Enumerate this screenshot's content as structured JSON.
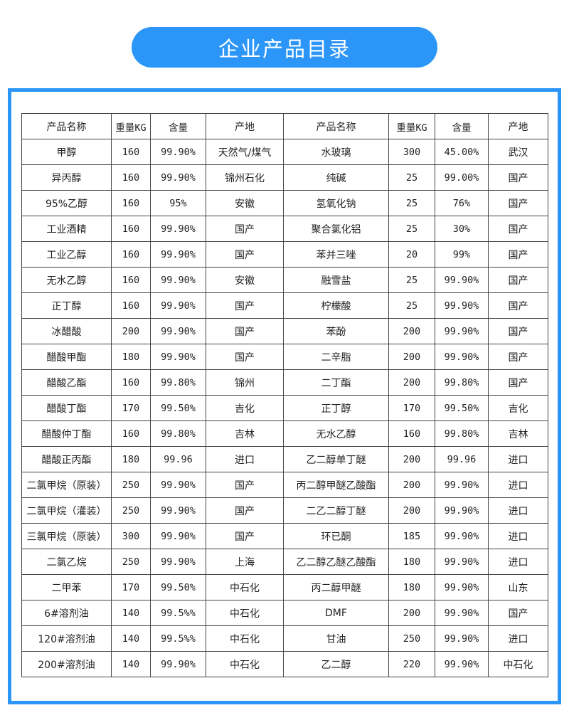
{
  "title": "企业产品目录",
  "colors": {
    "accent": "#2b96f7"
  },
  "table": {
    "headers": [
      "产品名称",
      "重量KG",
      "含量",
      "产地",
      "产品名称",
      "重量KG",
      "含量",
      "产地"
    ],
    "rows": [
      [
        "甲醇",
        "160",
        "99.90%",
        "天然气/煤气",
        "水玻璃",
        "300",
        "45.00%",
        "武汉"
      ],
      [
        "异丙醇",
        "160",
        "99.90%",
        "锦州石化",
        "纯碱",
        "25",
        "99.00%",
        "国产"
      ],
      [
        "95%乙醇",
        "160",
        "95%",
        "安徽",
        "氢氧化钠",
        "25",
        "76%",
        "国产"
      ],
      [
        "工业酒精",
        "160",
        "99.90%",
        "国产",
        "聚合氯化铝",
        "25",
        "30%",
        "国产"
      ],
      [
        "工业乙醇",
        "160",
        "99.90%",
        "国产",
        "苯并三唑",
        "20",
        "99%",
        "国产"
      ],
      [
        "无水乙醇",
        "160",
        "99.90%",
        "安徽",
        "融雪盐",
        "25",
        "99.90%",
        "国产"
      ],
      [
        "正丁醇",
        "160",
        "99.90%",
        "国产",
        "柠檬酸",
        "25",
        "99.90%",
        "国产"
      ],
      [
        "冰醋酸",
        "200",
        "99.90%",
        "国产",
        "苯酚",
        "200",
        "99.90%",
        "国产"
      ],
      [
        "醋酸甲酯",
        "180",
        "99.90%",
        "国产",
        "二辛脂",
        "200",
        "99.90%",
        "国产"
      ],
      [
        "醋酸乙酯",
        "160",
        "99.80%",
        "锦州",
        "二丁酯",
        "200",
        "99.80%",
        "国产"
      ],
      [
        "醋酸丁酯",
        "170",
        "99.50%",
        "吉化",
        "正丁醇",
        "170",
        "99.50%",
        "吉化"
      ],
      [
        "醋酸仲丁酯",
        "160",
        "99.80%",
        "吉林",
        "无水乙醇",
        "160",
        "99.80%",
        "吉林"
      ],
      [
        "醋酸正丙酯",
        "180",
        "99.96",
        "进口",
        "乙二醇单丁醚",
        "200",
        "99.96",
        "进口"
      ],
      [
        "二氯甲烷（原装）",
        "250",
        "99.90%",
        "国产",
        "丙二醇甲醚乙酸酯",
        "200",
        "99.90%",
        "进口"
      ],
      [
        "二氯甲烷（灌装）",
        "250",
        "99.90%",
        "国产",
        "二乙二醇丁醚",
        "200",
        "99.90%",
        "进口"
      ],
      [
        "三氯甲烷（原装）",
        "300",
        "99.90%",
        "国产",
        "环已酮",
        "185",
        "99.90%",
        "进口"
      ],
      [
        "二氯乙烷",
        "250",
        "99.90%",
        "上海",
        "乙二醇乙醚乙酸酯",
        "180",
        "99.90%",
        "进口"
      ],
      [
        "二甲苯",
        "170",
        "99.50%",
        "中石化",
        "丙二醇甲醚",
        "180",
        "99.90%",
        "山东"
      ],
      [
        "6#溶剂油",
        "140",
        "99.5%%",
        "中石化",
        "DMF",
        "200",
        "99.90%",
        "国产"
      ],
      [
        "120#溶剂油",
        "140",
        "99.5%%",
        "中石化",
        "甘油",
        "250",
        "99.90%",
        "进口"
      ],
      [
        "200#溶剂油",
        "140",
        "99.90%",
        "中石化",
        "乙二醇",
        "220",
        "99.90%",
        "中石化"
      ]
    ]
  }
}
